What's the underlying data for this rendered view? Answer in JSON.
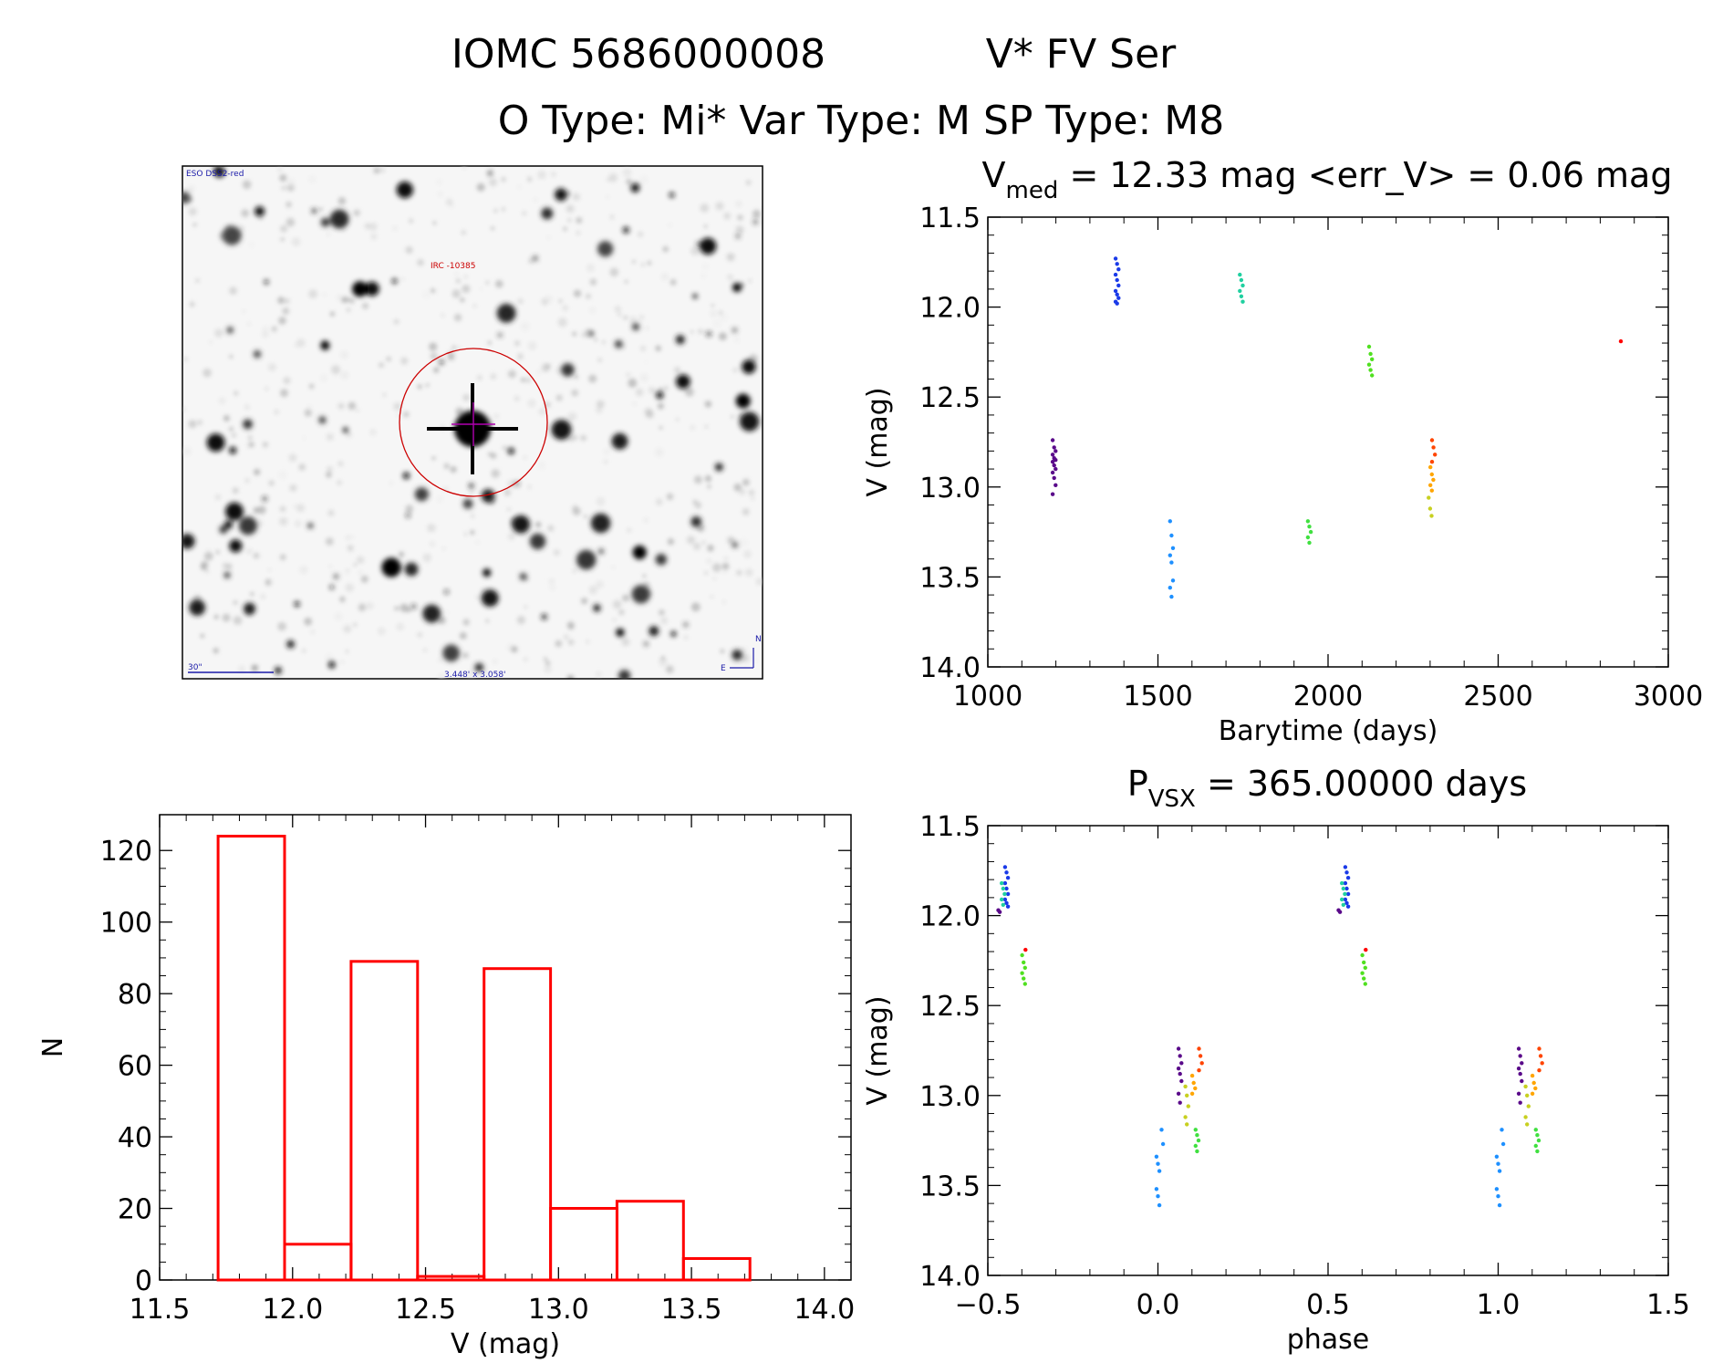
{
  "header": {
    "line1_id": "IOMC 5686000008",
    "line1_name": "V* FV Ser",
    "line2": "O Type: Mi*  Var Type: M  SP Type: M8"
  },
  "image_panel": {
    "survey_label": "ESO DSS2-red",
    "object_label": "IRC -10385",
    "scale_label": "30\"",
    "fov_label": "3.448' x 3.058'",
    "north_label": "N",
    "east_label": "E"
  },
  "colors": {
    "histogram": "#ff0000",
    "image_annotation": "#cc0000",
    "image_overlay_blue": "#1a1aa8",
    "crosshair": "#b000b0"
  },
  "chart_data": [
    {
      "type": "scatter",
      "title_main": "V",
      "title_sub": "med",
      "title_rest": " = 12.33 mag <err_V> = 0.06 mag",
      "xlabel": "Barytime (days)",
      "ylabel": "V (mag)",
      "xlim": [
        1000,
        3000
      ],
      "ylim": [
        14.0,
        11.5
      ],
      "y_inverted": true,
      "xticks": [
        "1000",
        "1500",
        "2000",
        "2500",
        "3000"
      ],
      "yticks": [
        "11.5",
        "12.0",
        "12.5",
        "13.0",
        "13.5",
        "14.0"
      ],
      "groups": [
        {
          "t": 1195,
          "color": "#5a0a8a",
          "v": [
            12.74,
            12.78,
            12.8,
            12.82,
            12.84,
            12.85,
            12.86,
            12.88,
            12.9,
            12.92,
            12.95,
            12.99,
            13.04
          ]
        },
        {
          "t": 1380,
          "color": "#1a3ae8",
          "v": [
            11.73,
            11.76,
            11.79,
            11.82,
            11.85,
            11.88,
            11.91,
            11.93,
            11.95,
            11.97,
            11.98
          ]
        },
        {
          "t": 1540,
          "color": "#1e90ff",
          "v": [
            13.19,
            13.27,
            13.34,
            13.38,
            13.42,
            13.52,
            13.56,
            13.61
          ]
        },
        {
          "t": 1745,
          "color": "#20d0a0",
          "v": [
            11.82,
            11.85,
            11.88,
            11.91,
            11.94,
            11.97
          ]
        },
        {
          "t": 1945,
          "color": "#40e040",
          "v": [
            13.19,
            13.22,
            13.25,
            13.28,
            13.31
          ]
        },
        {
          "t": 2125,
          "color": "#50e020",
          "v": [
            12.22,
            12.26,
            12.29,
            12.32,
            12.35,
            12.38
          ]
        },
        {
          "t": 2300,
          "color": "#c8d020",
          "v": [
            13.06,
            13.12,
            13.16
          ]
        },
        {
          "t": 2305,
          "color": "#ffa500",
          "v": [
            12.89,
            12.93,
            12.96,
            12.99,
            13.02
          ]
        },
        {
          "t": 2310,
          "color": "#ff4500",
          "v": [
            12.74,
            12.78,
            12.82,
            12.86
          ]
        },
        {
          "t": 2865,
          "color": "#ff0000",
          "v": [
            12.19
          ]
        }
      ]
    },
    {
      "type": "bar",
      "xlabel": "V (mag)",
      "ylabel": "N",
      "xlim": [
        11.5,
        14.1
      ],
      "ylim": [
        0,
        130
      ],
      "xticks": [
        "11.5",
        "12.0",
        "12.5",
        "13.0",
        "13.5",
        "14.0"
      ],
      "yticks": [
        "0",
        "20",
        "40",
        "60",
        "80",
        "100",
        "120"
      ],
      "bin_edges": [
        11.72,
        11.97,
        12.22,
        12.47,
        12.72,
        12.97,
        13.22,
        13.47,
        13.72
      ],
      "values": [
        124,
        10,
        89,
        1,
        87,
        20,
        22,
        6
      ]
    },
    {
      "type": "scatter",
      "title_main": "P",
      "title_sub": "VSX",
      "title_rest": " = 365.00000 days",
      "xlabel": "phase",
      "ylabel": "V (mag)",
      "xlim": [
        -0.5,
        1.5
      ],
      "ylim": [
        14.0,
        11.5
      ],
      "y_inverted": true,
      "xticks": [
        "−0.5",
        "0.0",
        "0.5",
        "1.0",
        "1.5"
      ],
      "yticks": [
        "11.5",
        "12.0",
        "12.5",
        "13.0",
        "13.5",
        "14.0"
      ],
      "groups": [
        {
          "phase": -0.465,
          "color": "#5a0a8a",
          "v": [
            11.97,
            11.98
          ]
        },
        {
          "phase": -0.445,
          "color": "#1a3ae8",
          "v": [
            11.73,
            11.76,
            11.79,
            11.82,
            11.85,
            11.88,
            11.91,
            11.93,
            11.95
          ]
        },
        {
          "phase": -0.455,
          "color": "#20d0a0",
          "v": [
            11.82,
            11.85,
            11.88,
            11.91,
            11.94
          ]
        },
        {
          "phase": -0.395,
          "color": "#50e020",
          "v": [
            12.22,
            12.26,
            12.29,
            12.32,
            12.35,
            12.38
          ]
        },
        {
          "phase": -0.385,
          "color": "#ff0000",
          "v": [
            12.19
          ]
        },
        {
          "phase": 0.0,
          "color": "#1e90ff",
          "v": [
            13.34,
            13.38,
            13.42,
            13.52,
            13.56,
            13.61
          ]
        },
        {
          "phase": 0.015,
          "color": "#1e90ff",
          "v": [
            13.19,
            13.27
          ]
        },
        {
          "phase": 0.065,
          "color": "#5a0a8a",
          "v": [
            12.74,
            12.78,
            12.82,
            12.85,
            12.88,
            12.92,
            12.99,
            13.04
          ]
        },
        {
          "phase": 0.085,
          "color": "#c8d020",
          "v": [
            12.95,
            13.0,
            13.06,
            13.12,
            13.16
          ]
        },
        {
          "phase": 0.105,
          "color": "#ffa500",
          "v": [
            12.89,
            12.93,
            12.96,
            12.99
          ]
        },
        {
          "phase": 0.125,
          "color": "#ff4500",
          "v": [
            12.74,
            12.78,
            12.82,
            12.86
          ]
        },
        {
          "phase": 0.115,
          "color": "#40e040",
          "v": [
            13.19,
            13.22,
            13.25,
            13.28,
            13.31
          ]
        },
        {
          "phase": 0.535,
          "color": "#5a0a8a",
          "v": [
            11.97,
            11.98
          ]
        },
        {
          "phase": 0.555,
          "color": "#1a3ae8",
          "v": [
            11.73,
            11.76,
            11.79,
            11.82,
            11.85,
            11.88,
            11.91,
            11.93,
            11.95
          ]
        },
        {
          "phase": 0.545,
          "color": "#20d0a0",
          "v": [
            11.82,
            11.85,
            11.88,
            11.91,
            11.94
          ]
        },
        {
          "phase": 0.605,
          "color": "#50e020",
          "v": [
            12.22,
            12.26,
            12.29,
            12.32,
            12.35,
            12.38
          ]
        },
        {
          "phase": 0.615,
          "color": "#ff0000",
          "v": [
            12.19
          ]
        },
        {
          "phase": 1.0,
          "color": "#1e90ff",
          "v": [
            13.34,
            13.38,
            13.42,
            13.52,
            13.56,
            13.61
          ]
        },
        {
          "phase": 1.015,
          "color": "#1e90ff",
          "v": [
            13.19,
            13.27
          ]
        },
        {
          "phase": 1.065,
          "color": "#5a0a8a",
          "v": [
            12.74,
            12.78,
            12.82,
            12.85,
            12.88,
            12.92,
            12.99,
            13.04
          ]
        },
        {
          "phase": 1.085,
          "color": "#c8d020",
          "v": [
            12.95,
            13.0,
            13.06,
            13.12,
            13.16
          ]
        },
        {
          "phase": 1.105,
          "color": "#ffa500",
          "v": [
            12.89,
            12.93,
            12.96,
            12.99
          ]
        },
        {
          "phase": 1.125,
          "color": "#ff4500",
          "v": [
            12.74,
            12.78,
            12.82,
            12.86
          ]
        },
        {
          "phase": 1.115,
          "color": "#40e040",
          "v": [
            13.19,
            13.22,
            13.25,
            13.28,
            13.31
          ]
        }
      ]
    }
  ]
}
